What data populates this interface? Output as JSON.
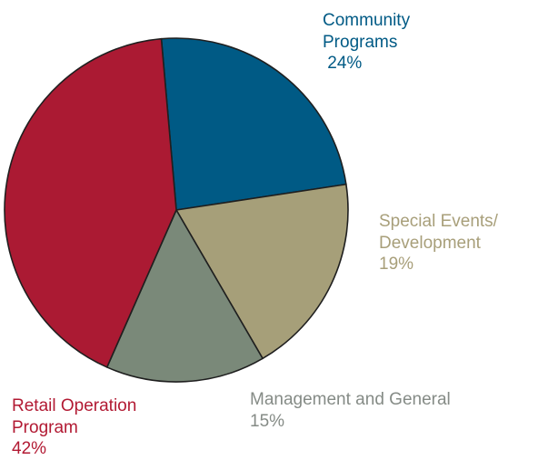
{
  "chart_data": {
    "type": "pie",
    "slices": [
      {
        "key": "community",
        "label_lines": [
          "Community",
          "Programs",
          " 24%"
        ],
        "value": 24,
        "color": "#005a85"
      },
      {
        "key": "special",
        "label_lines": [
          "Special Events/",
          "Development",
          "19%"
        ],
        "value": 19,
        "color": "#a69f79"
      },
      {
        "key": "mgmt",
        "label_lines": [
          "Management and General",
          "15%"
        ],
        "value": 15,
        "color": "#7a8979"
      },
      {
        "key": "retail",
        "label_lines": [
          "Retail Operation",
          "Program",
          "42%"
        ],
        "value": 42,
        "color": "#ab1a33"
      }
    ]
  }
}
